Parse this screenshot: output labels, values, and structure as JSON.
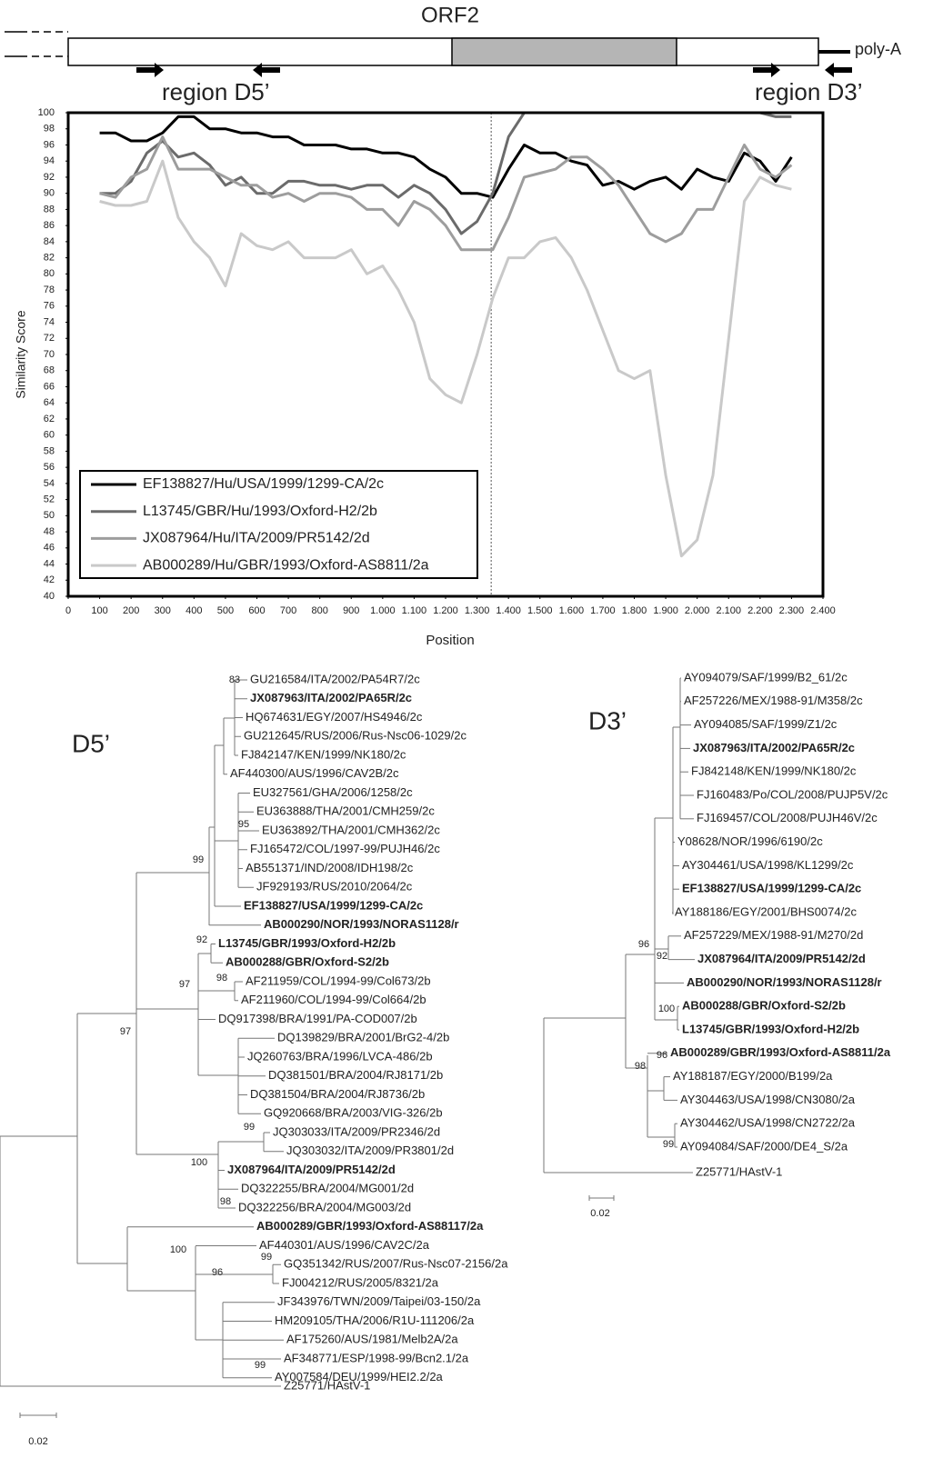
{
  "genome_map": {
    "title": "ORF2",
    "polyA_label": "poly-A",
    "region_left": "region D5’",
    "region_right": "region D3’"
  },
  "chart_data": {
    "type": "line",
    "y_label": "Similarity Score",
    "x_label": "Position",
    "xlim": [
      0,
      2400
    ],
    "ylim": [
      40,
      100
    ],
    "xticks": [
      0,
      100,
      200,
      300,
      400,
      500,
      600,
      700,
      800,
      900,
      {
        "value": 1000,
        "label": "1.000"
      },
      {
        "value": 1100,
        "label": "1.100"
      },
      {
        "value": 1200,
        "label": "1.200"
      },
      {
        "value": 1300,
        "label": "1.300"
      },
      {
        "value": 1400,
        "label": "1.400"
      },
      {
        "value": 1500,
        "label": "1.500"
      },
      {
        "value": 1600,
        "label": "1.600"
      },
      {
        "value": 1700,
        "label": "1.700"
      },
      {
        "value": 1800,
        "label": "1.800"
      },
      {
        "value": 1900,
        "label": "1.900"
      },
      {
        "value": 2000,
        "label": "2.000"
      },
      {
        "value": 2100,
        "label": "2.100"
      },
      {
        "value": 2200,
        "label": "2.200"
      },
      {
        "value": 2300,
        "label": "2.300"
      },
      {
        "value": 2400,
        "label": "2.400"
      }
    ],
    "yticks": [
      40,
      42,
      44,
      46,
      48,
      50,
      52,
      54,
      56,
      58,
      60,
      62,
      64,
      66,
      68,
      70,
      72,
      74,
      76,
      78,
      80,
      82,
      84,
      86,
      88,
      90,
      92,
      94,
      96,
      98,
      100
    ],
    "reference_line_x": 1345,
    "x": [
      100,
      150,
      200,
      250,
      300,
      350,
      400,
      450,
      500,
      550,
      600,
      650,
      700,
      750,
      800,
      850,
      900,
      950,
      1000,
      1050,
      1100,
      1150,
      1200,
      1250,
      1300,
      1350,
      1400,
      1450,
      1500,
      1550,
      1600,
      1650,
      1700,
      1750,
      1800,
      1850,
      1900,
      1950,
      2000,
      2050,
      2100,
      2150,
      2200,
      2250,
      2300
    ],
    "series": [
      {
        "name": "EF138827/Hu/USA/1999/1299-CA/2c",
        "color": "#000000",
        "values": [
          97.5,
          97.5,
          96.5,
          96.5,
          97.5,
          99.5,
          99.5,
          98,
          98,
          97.5,
          97.5,
          97,
          97,
          96,
          96,
          96,
          95.5,
          95.5,
          95,
          95,
          94.5,
          93,
          92,
          90,
          90,
          89.5,
          93,
          96,
          95,
          95,
          94,
          93.5,
          91,
          91.5,
          90.5,
          91.5,
          92,
          90.5,
          93,
          92,
          91.5,
          95,
          94,
          91.5,
          94.5
        ]
      },
      {
        "name": "L13745/GBR/Hu/1993/Oxford-H2/2b",
        "color": "#6b6b6b",
        "values": [
          90,
          90,
          91.5,
          95,
          96.5,
          94.5,
          95,
          93.5,
          91,
          92,
          90,
          90,
          91.5,
          91.5,
          91,
          91,
          90.5,
          91,
          91,
          89.5,
          91,
          90,
          88,
          85,
          86.5,
          90,
          97,
          100,
          100,
          100,
          100,
          100,
          100,
          100,
          100,
          100,
          100,
          100,
          100,
          100,
          100,
          100,
          100,
          99.5,
          99.5
        ]
      },
      {
        "name": "JX087964/Hu/ITA/2009/PR5142/2d",
        "color": "#9d9d9d",
        "values": [
          90,
          89.5,
          92,
          93,
          97,
          93,
          93,
          93,
          92,
          91,
          91,
          89.5,
          90,
          89,
          90,
          90,
          89.5,
          88,
          88,
          86,
          89,
          88,
          86,
          83,
          83,
          83,
          87,
          92,
          92.5,
          93,
          94.5,
          94.5,
          93,
          91,
          88,
          85,
          84,
          85,
          88,
          88,
          92,
          96,
          93,
          92,
          93.5
        ]
      },
      {
        "name": "AB000289/Hu/GBR/1993/Oxford-AS8811/2a",
        "color": "#c9c9c9",
        "values": [
          89,
          88.5,
          88.5,
          89,
          94,
          87,
          84,
          82,
          78.5,
          85,
          83.5,
          83,
          84,
          82,
          82,
          82,
          83,
          80,
          81,
          78,
          74,
          67,
          65,
          64,
          70,
          77,
          82,
          82,
          84,
          84.5,
          82,
          78,
          73,
          68,
          67,
          68,
          55,
          45,
          47,
          55,
          72,
          89,
          92,
          91,
          90.5
        ]
      }
    ]
  },
  "trees": [
    {
      "title": "D5’",
      "scale": 0.02,
      "leaves": [
        {
          "label": "GU216584/ITA/2002/PA54R7/2c",
          "bold": false
        },
        {
          "label": "JX087963/ITA/2002/PA65R/2c",
          "bold": true
        },
        {
          "label": "HQ674631/EGY/2007/HS4946/2c",
          "bold": false
        },
        {
          "label": "GU212645/RUS/2006/Rus-Nsc06-1029/2c",
          "bold": false
        },
        {
          "label": "FJ842147/KEN/1999/NK180/2c",
          "bold": false
        },
        {
          "label": "AF440300/AUS/1996/CAV2B/2c",
          "bold": false
        },
        {
          "label": "EU327561/GHA/2006/1258/2c",
          "bold": false
        },
        {
          "label": "EU363888/THA/2001/CMH259/2c",
          "bold": false
        },
        {
          "label": "EU363892/THA/2001/CMH362/2c",
          "bold": false
        },
        {
          "label": "FJ165472/COL/1997-99/PUJH46/2c",
          "bold": false
        },
        {
          "label": "AB551371/IND/2008/IDH198/2c",
          "bold": false
        },
        {
          "label": "JF929193/RUS/2010/2064/2c",
          "bold": false
        },
        {
          "label": "EF138827/USA/1999/1299-CA/2c",
          "bold": true
        },
        {
          "label": "AB000290/NOR/1993/NORAS1128/r",
          "bold": true
        },
        {
          "label": "L13745/GBR/1993/Oxford-H2/2b",
          "bold": true
        },
        {
          "label": "AB000288/GBR/Oxford-S2/2b",
          "bold": true
        },
        {
          "label": "AF211959/COL/1994-99/Col673/2b",
          "bold": false
        },
        {
          "label": "AF211960/COL/1994-99/Col664/2b",
          "bold": false
        },
        {
          "label": "DQ917398/BRA/1991/PA-COD007/2b",
          "bold": false
        },
        {
          "label": "DQ139829/BRA/2001/BrG2-4/2b",
          "bold": false
        },
        {
          "label": "JQ260763/BRA/1996/LVCA-486/2b",
          "bold": false
        },
        {
          "label": "DQ381501/BRA/2004/RJ8171/2b",
          "bold": false
        },
        {
          "label": "DQ381504/BRA/2004/RJ8736/2b",
          "bold": false
        },
        {
          "label": "GQ920668/BRA/2003/VIG-326/2b",
          "bold": false
        },
        {
          "label": "JQ303033/ITA/2009/PR2346/2d",
          "bold": false
        },
        {
          "label": "JQ303032/ITA/2009/PR3801/2d",
          "bold": false
        },
        {
          "label": "JX087964/ITA/2009/PR5142/2d",
          "bold": true
        },
        {
          "label": "DQ322255/BRA/2004/MG001/2d",
          "bold": false
        },
        {
          "label": "DQ322256/BRA/2004/MG003/2d",
          "bold": false
        },
        {
          "label": "AB000289/GBR/1993/Oxford-AS88117/2a",
          "bold": true
        },
        {
          "label": "AF440301/AUS/1996/CAV2C/2a",
          "bold": false
        },
        {
          "label": "GQ351342/RUS/2007/Rus-Nsc07-2156/2a",
          "bold": false
        },
        {
          "label": "FJ004212/RUS/2005/8321/2a",
          "bold": false
        },
        {
          "label": "JF343976/TWN/2009/Taipei/03-150/2a",
          "bold": false
        },
        {
          "label": "HM209105/THA/2006/R1U-111206/2a",
          "bold": false
        },
        {
          "label": "AF175260/AUS/1981/Melb2A/2a",
          "bold": false
        },
        {
          "label": "AF348771/ESP/1998-99/Bcn2.1/2a",
          "bold": false
        },
        {
          "label": "AY007584/DEU/1999/HEI2.2/2a",
          "bold": false
        },
        {
          "label": "Z25771/HAstV-1",
          "bold": false
        }
      ],
      "bootstraps": [
        83,
        95,
        99,
        92,
        98,
        97,
        97,
        99,
        100,
        98,
        100,
        99,
        96,
        99
      ]
    },
    {
      "title": "D3’",
      "scale": 0.02,
      "leaves": [
        {
          "label": "AY094079/SAF/1999/B2_61/2c",
          "bold": false
        },
        {
          "label": "AF257226/MEX/1988-91/M358/2c",
          "bold": false
        },
        {
          "label": "AY094085/SAF/1999/Z1/2c",
          "bold": false
        },
        {
          "label": "JX087963/ITA/2002/PA65R/2c",
          "bold": true
        },
        {
          "label": "FJ842148/KEN/1999/NK180/2c",
          "bold": false
        },
        {
          "label": "FJ160483/Po/COL/2008/PUJP5V/2c",
          "bold": false
        },
        {
          "label": "FJ169457/COL/2008/PUJH46V/2c",
          "bold": false
        },
        {
          "label": "Y08628/NOR/1996/6190/2c",
          "bold": false
        },
        {
          "label": "AY304461/USA/1998/KL1299/2c",
          "bold": false
        },
        {
          "label": "EF138827/USA/1999/1299-CA/2c",
          "bold": true
        },
        {
          "label": "AY188186/EGY/2001/BHS0074/2c",
          "bold": false
        },
        {
          "label": "AF257229/MEX/1988-91/M270/2d",
          "bold": false
        },
        {
          "label": "JX087964/ITA/2009/PR5142/2d",
          "bold": true
        },
        {
          "label": "AB000290/NOR/1993/NORAS1128/r",
          "bold": true
        },
        {
          "label": "AB000288/GBR/Oxford-S2/2b",
          "bold": true
        },
        {
          "label": "L13745/GBR/1993/Oxford-H2/2b",
          "bold": true
        },
        {
          "label": "AB000289/GBR/1993/Oxford-AS8811/2a",
          "bold": true
        },
        {
          "label": "AY188187/EGY/2000/B199/2a",
          "bold": false
        },
        {
          "label": "AY304463/USA/1998/CN3080/2a",
          "bold": false
        },
        {
          "label": "AY304462/USA/1998/CN2722/2a",
          "bold": false
        },
        {
          "label": "AY094084/SAF/2000/DE4_S/2a",
          "bold": false
        },
        {
          "label": "Z25771/HAstV-1",
          "bold": false
        }
      ],
      "bootstraps": [
        96,
        92,
        100,
        96,
        98,
        99
      ]
    }
  ]
}
